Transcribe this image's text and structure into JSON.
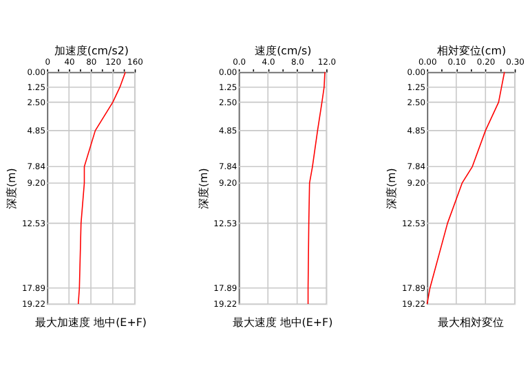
{
  "chart_data": [
    {
      "type": "line",
      "xlabel": "加速度(cm/s2)",
      "ylabel": "深度(m)",
      "annotations": [
        "最大加速度 地中(E+F)"
      ],
      "grid": true,
      "legend": false,
      "xlim": [
        0,
        160
      ],
      "xticks": [
        0,
        {
          "value": 20,
          "label": null
        },
        40,
        {
          "value": 60,
          "label": null
        },
        80,
        {
          "value": 100,
          "label": null
        },
        120,
        {
          "value": 140,
          "label": null
        },
        160
      ],
      "ylim": [
        19.22,
        0
      ],
      "yticks": [
        {
          "value": 0,
          "label": "0.00"
        },
        1.25,
        {
          "value": 2.5,
          "label": "2.50"
        },
        4.85,
        7.84,
        {
          "value": 9.2,
          "label": "9.20"
        },
        12.53,
        17.89,
        19.22
      ],
      "series": [
        {
          "color": "#ff0000",
          "x": [
            143,
            133,
            120,
            88,
            68,
            68,
            62,
            59,
            57
          ],
          "values": [
            0,
            1.25,
            2.5,
            4.85,
            7.84,
            9.2,
            12.53,
            17.89,
            19.22
          ]
        }
      ]
    },
    {
      "type": "line",
      "xlabel": "速度(cm/s)",
      "ylabel": "深度(m)",
      "annotations": [
        "最大速度 地中(E+F)"
      ],
      "grid": true,
      "legend": false,
      "xlim": [
        0,
        12
      ],
      "xticks": [
        {
          "value": 0,
          "label": "0.0"
        },
        {
          "value": 2,
          "label": null
        },
        {
          "value": 4,
          "label": "4.0"
        },
        {
          "value": 6,
          "label": null
        },
        {
          "value": 8,
          "label": "8.0"
        },
        {
          "value": 10,
          "label": null
        },
        {
          "value": 12,
          "label": "12.0"
        }
      ],
      "ylim": [
        19.22,
        0
      ],
      "yticks": [
        {
          "value": 0,
          "label": "0.00"
        },
        1.25,
        {
          "value": 2.5,
          "label": "2.50"
        },
        4.85,
        7.84,
        {
          "value": 9.2,
          "label": "9.20"
        },
        12.53,
        17.89,
        19.22
      ],
      "series": [
        {
          "color": "#ff0000",
          "x": [
            11.8,
            11.7,
            11.4,
            10.8,
            10.1,
            9.7,
            9.6,
            9.5,
            9.5
          ],
          "values": [
            0,
            1.25,
            2.5,
            4.85,
            7.84,
            9.2,
            12.53,
            17.89,
            19.22
          ]
        }
      ]
    },
    {
      "type": "line",
      "xlabel": "相対変位(cm)",
      "ylabel": "深度(m)",
      "annotations": [
        "最大相対変位"
      ],
      "grid": true,
      "legend": false,
      "xlim": [
        0,
        0.3
      ],
      "xticks": [
        {
          "value": 0,
          "label": "0.00"
        },
        {
          "value": 0.05,
          "label": null
        },
        {
          "value": 0.1,
          "label": "0.10"
        },
        {
          "value": 0.15,
          "label": null
        },
        {
          "value": 0.2,
          "label": "0.20"
        },
        {
          "value": 0.25,
          "label": null
        },
        {
          "value": 0.3,
          "label": "0.30"
        }
      ],
      "ylim": [
        19.22,
        0
      ],
      "yticks": [
        {
          "value": 0,
          "label": "0.00"
        },
        1.25,
        {
          "value": 2.5,
          "label": "2.50"
        },
        4.85,
        7.84,
        {
          "value": 9.2,
          "label": "9.20"
        },
        12.53,
        17.89,
        19.22
      ],
      "series": [
        {
          "color": "#ff0000",
          "x": [
            0.265,
            0.255,
            0.245,
            0.2,
            0.155,
            0.12,
            0.07,
            0.01,
            0.0
          ],
          "values": [
            0,
            1.25,
            2.5,
            4.85,
            7.84,
            9.2,
            12.53,
            17.89,
            19.22
          ]
        }
      ]
    }
  ]
}
